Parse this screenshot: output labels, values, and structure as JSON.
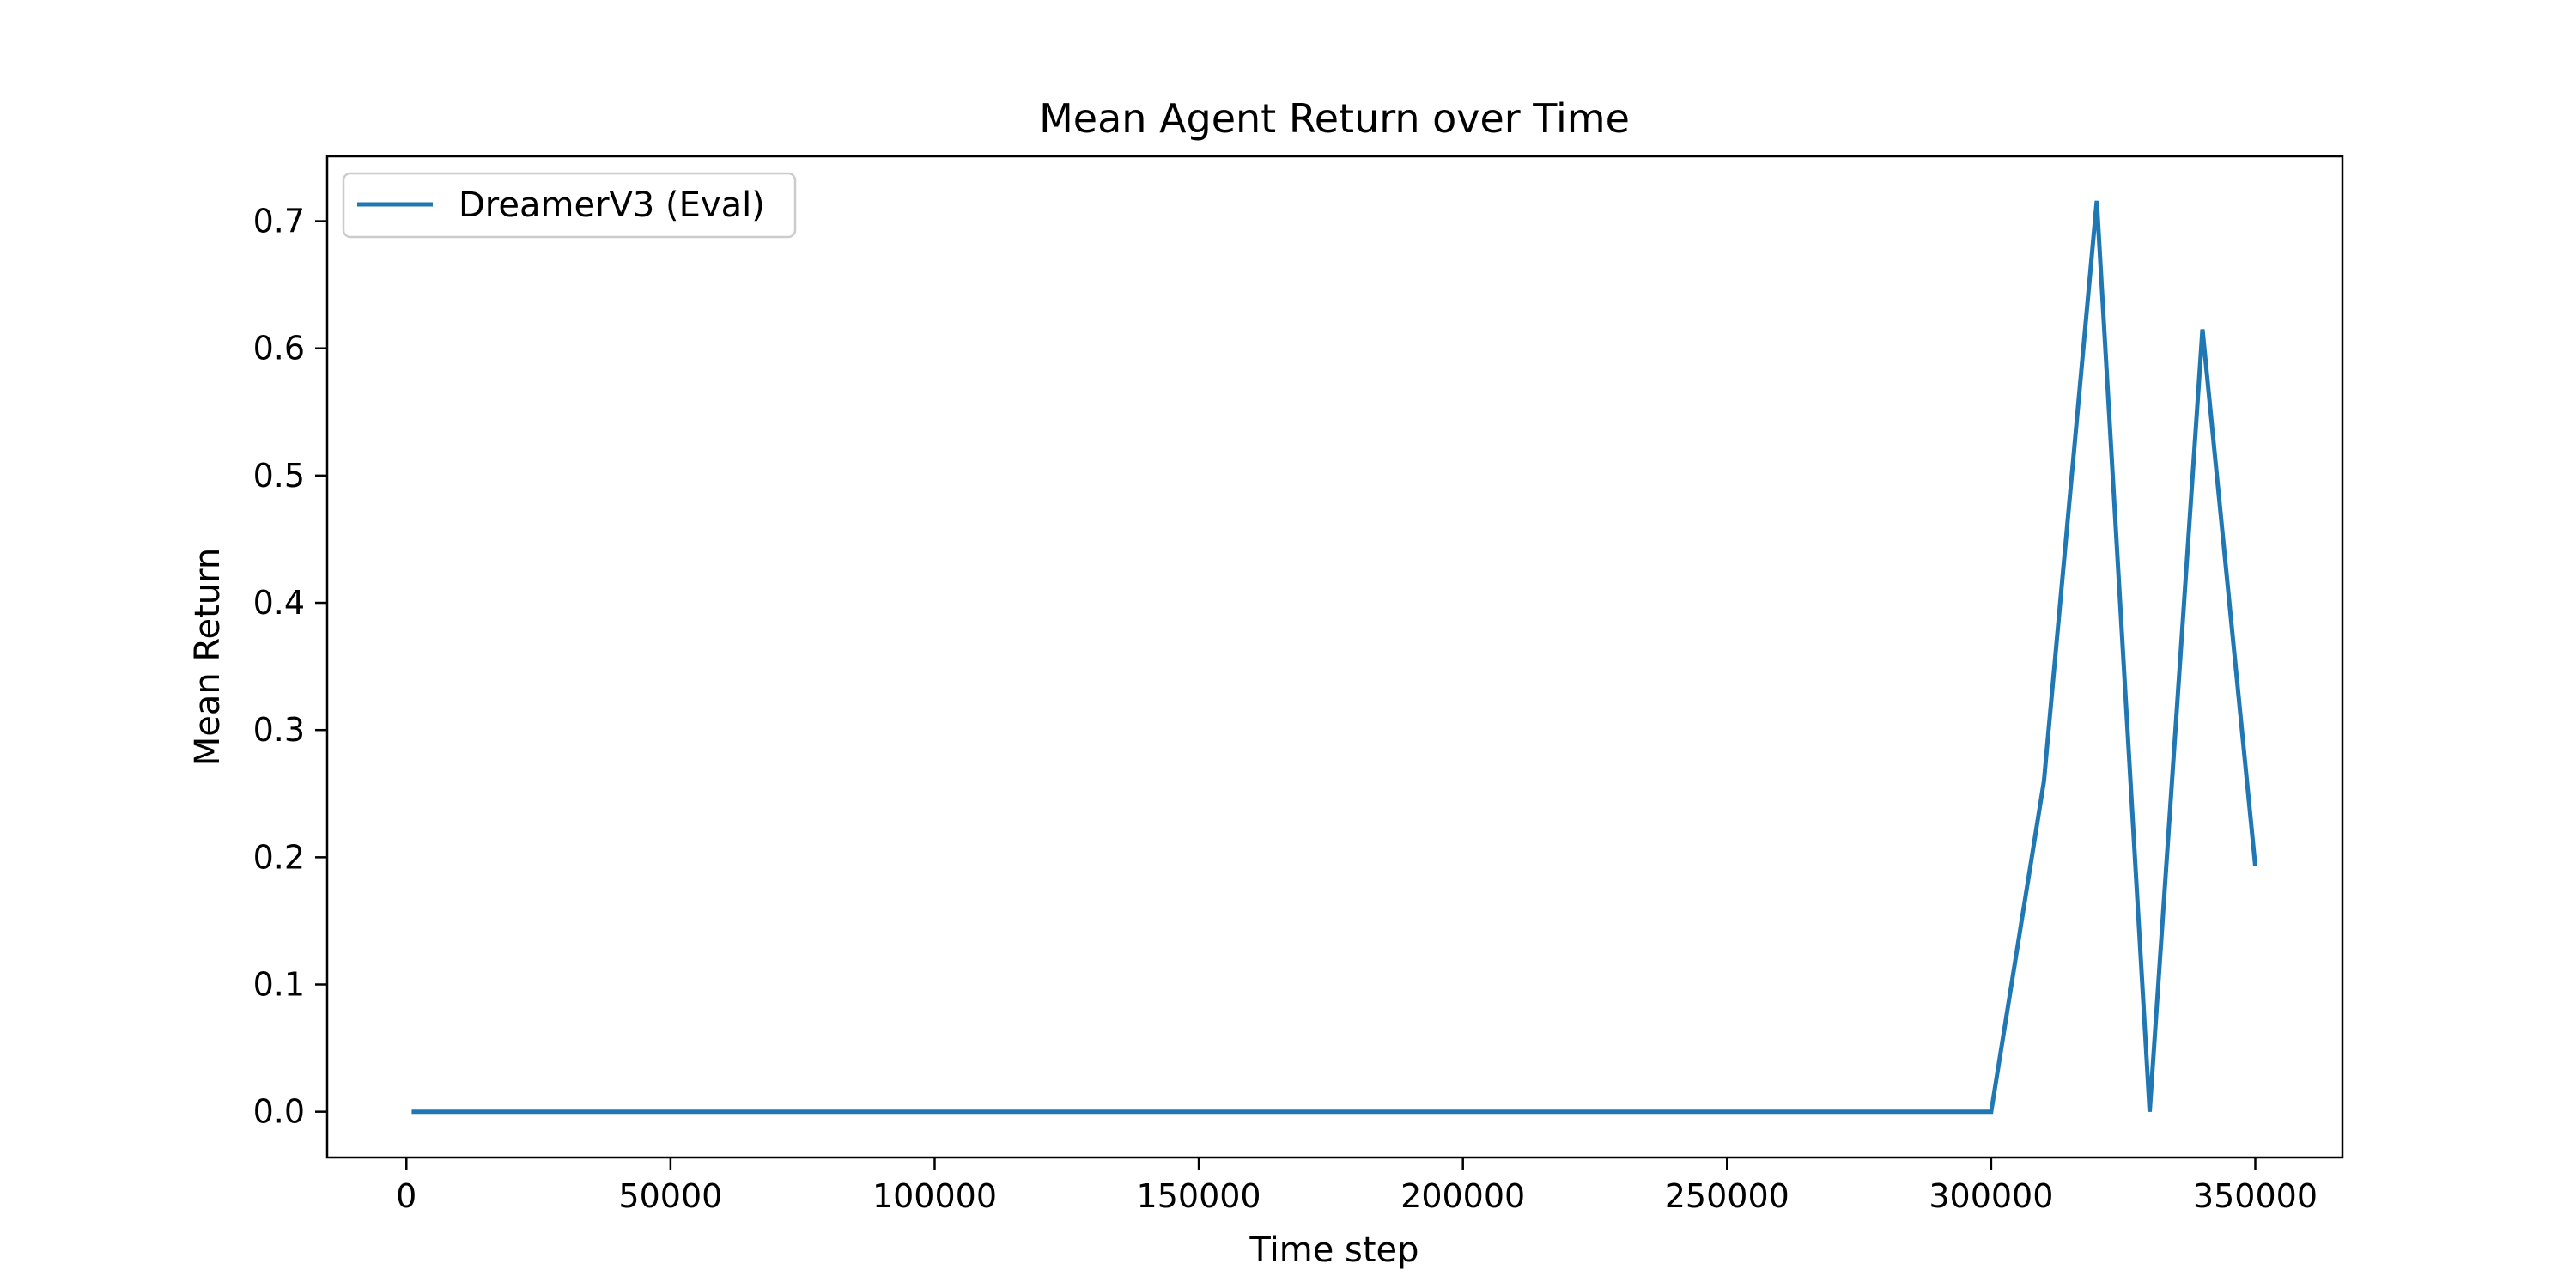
{
  "chart_data": {
    "type": "line",
    "title": "Mean Agent Return over Time",
    "xlabel": "Time step",
    "ylabel": "Mean Return",
    "xlim": [
      -15000,
      366500
    ],
    "ylim": [
      -0.036,
      0.751
    ],
    "xticks": [
      0,
      50000,
      100000,
      150000,
      200000,
      250000,
      300000,
      350000
    ],
    "yticks": [
      0.0,
      0.1,
      0.2,
      0.3,
      0.4,
      0.5,
      0.6,
      0.7
    ],
    "ytick_labels": [
      "0.0",
      "0.1",
      "0.2",
      "0.3",
      "0.4",
      "0.5",
      "0.6",
      "0.7"
    ],
    "grid": false,
    "legend_position": "top-left",
    "series": [
      {
        "name": "DreamerV3 (Eval)",
        "color": "#1f77b4",
        "x": [
          1000,
          300000,
          310000,
          320000,
          330000,
          340000,
          350000
        ],
        "y": [
          0.0,
          0.0,
          0.26,
          0.716,
          0.0,
          0.615,
          0.193
        ]
      }
    ]
  }
}
